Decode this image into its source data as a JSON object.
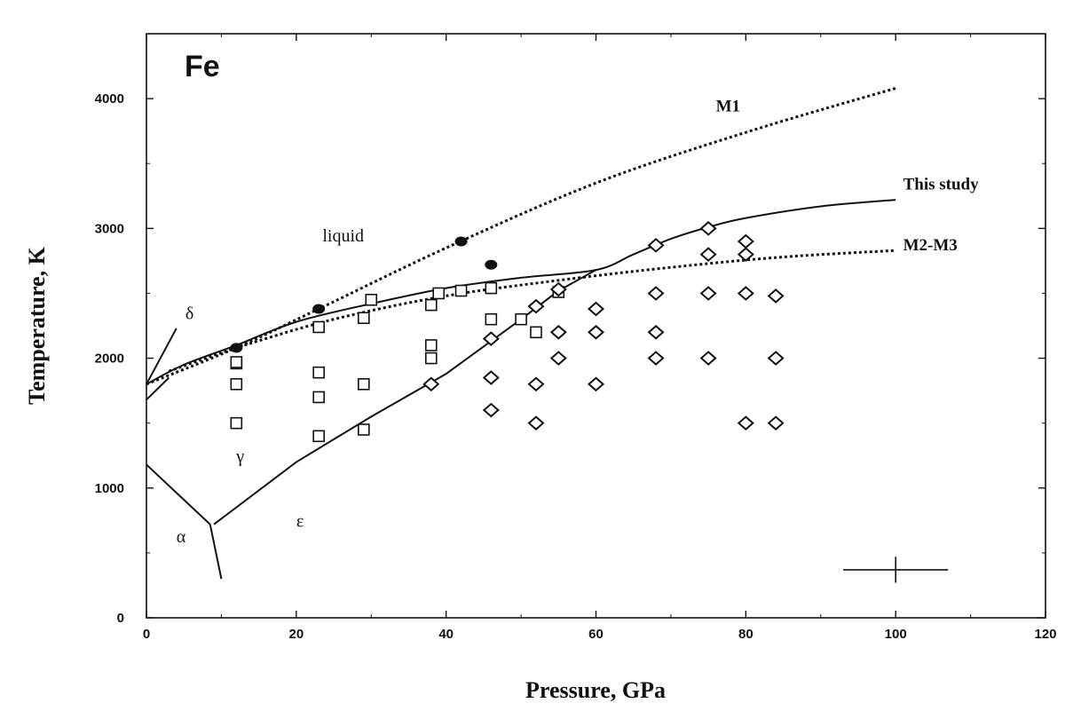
{
  "chart_data": {
    "type": "scatter",
    "title": "Fe",
    "xlabel": "Pressure, GPa",
    "ylabel": "Temperature, K",
    "xlim": [
      0,
      120
    ],
    "ylim": [
      0,
      4500
    ],
    "x_ticks": [
      0,
      20,
      40,
      60,
      80,
      100,
      120
    ],
    "y_ticks": [
      0,
      1000,
      2000,
      3000,
      4000
    ],
    "grid": false,
    "series": [
      {
        "name": "",
        "marker": "open-square",
        "points": [
          [
            12,
            1500
          ],
          [
            12,
            1800
          ],
          [
            12,
            1960
          ],
          [
            12,
            1970
          ],
          [
            23,
            1400
          ],
          [
            23,
            1700
          ],
          [
            23,
            1890
          ],
          [
            23,
            2240
          ],
          [
            29,
            1450
          ],
          [
            29,
            1800
          ],
          [
            29,
            2310
          ],
          [
            30,
            2450
          ],
          [
            38,
            2000
          ],
          [
            38,
            2100
          ],
          [
            38,
            2410
          ],
          [
            39,
            2500
          ],
          [
            42,
            2520
          ],
          [
            46,
            2300
          ],
          [
            46,
            2540
          ],
          [
            50,
            2300
          ],
          [
            52,
            2200
          ],
          [
            55,
            2510
          ]
        ]
      },
      {
        "name": "",
        "marker": "open-diamond",
        "points": [
          [
            38,
            1800
          ],
          [
            46,
            1600
          ],
          [
            46,
            1850
          ],
          [
            46,
            2150
          ],
          [
            52,
            1500
          ],
          [
            52,
            1800
          ],
          [
            52,
            2400
          ],
          [
            55,
            2000
          ],
          [
            55,
            2200
          ],
          [
            55,
            2530
          ],
          [
            60,
            1800
          ],
          [
            60,
            2200
          ],
          [
            60,
            2380
          ],
          [
            68,
            2000
          ],
          [
            68,
            2200
          ],
          [
            68,
            2500
          ],
          [
            68,
            2870
          ],
          [
            75,
            2000
          ],
          [
            75,
            2500
          ],
          [
            75,
            2800
          ],
          [
            75,
            3000
          ],
          [
            80,
            1500
          ],
          [
            80,
            2500
          ],
          [
            80,
            2800
          ],
          [
            80,
            2900
          ],
          [
            84,
            1500
          ],
          [
            84,
            2000
          ],
          [
            84,
            2480
          ]
        ]
      },
      {
        "name": "",
        "marker": "filled-circle",
        "points": [
          [
            12,
            2080
          ],
          [
            23,
            2380
          ],
          [
            42,
            2900
          ],
          [
            46,
            2720
          ]
        ]
      }
    ],
    "curves": [
      {
        "name": "This study",
        "style": "solid",
        "points": [
          [
            0,
            1800
          ],
          [
            5,
            1950
          ],
          [
            12,
            2100
          ],
          [
            20,
            2280
          ],
          [
            30,
            2420
          ],
          [
            40,
            2540
          ],
          [
            50,
            2620
          ],
          [
            60,
            2680
          ],
          [
            65,
            2800
          ],
          [
            70,
            2920
          ],
          [
            75,
            3010
          ],
          [
            80,
            3080
          ],
          [
            90,
            3170
          ],
          [
            100,
            3220
          ]
        ]
      },
      {
        "name": "M1",
        "style": "dotted",
        "points": [
          [
            0,
            1800
          ],
          [
            12,
            2080
          ],
          [
            23,
            2380
          ],
          [
            40,
            2850
          ],
          [
            60,
            3350
          ],
          [
            80,
            3740
          ],
          [
            100,
            4080
          ]
        ]
      },
      {
        "name": "M2-M3",
        "style": "dotted",
        "points": [
          [
            3,
            1900
          ],
          [
            12,
            2080
          ],
          [
            25,
            2300
          ],
          [
            40,
            2480
          ],
          [
            55,
            2600
          ],
          [
            70,
            2700
          ],
          [
            85,
            2780
          ],
          [
            100,
            2830
          ]
        ]
      }
    ],
    "phase_boundaries": [
      {
        "style": "solid",
        "points": [
          [
            0,
            1680
          ],
          [
            3,
            1850
          ]
        ]
      },
      {
        "style": "solid",
        "points": [
          [
            0,
            1800
          ],
          [
            4,
            2230
          ]
        ]
      },
      {
        "style": "solid",
        "points": [
          [
            0,
            1180
          ],
          [
            8.5,
            720
          ]
        ]
      },
      {
        "style": "solid",
        "points": [
          [
            8.5,
            720
          ],
          [
            10,
            300
          ]
        ]
      },
      {
        "style": "solid",
        "points": [
          [
            9,
            720
          ],
          [
            20,
            1200
          ],
          [
            30,
            1550
          ],
          [
            40,
            1880
          ],
          [
            50,
            2300
          ],
          [
            55,
            2520
          ],
          [
            60,
            2680
          ]
        ]
      }
    ],
    "error_bar": {
      "x": 100,
      "y": 370,
      "x_err": 7,
      "y_err": 100
    },
    "annotations": [
      {
        "text": "M1",
        "x": 76,
        "y": 3900,
        "kind": "curve"
      },
      {
        "text": "This study",
        "x": 101,
        "y": 3300,
        "kind": "curve"
      },
      {
        "text": "M2-M3",
        "x": 101,
        "y": 2830,
        "kind": "curve"
      },
      {
        "text": "liquid",
        "x": 23.5,
        "y": 2900,
        "kind": "region"
      },
      {
        "text": "δ",
        "x": 5.2,
        "y": 2300,
        "kind": "region"
      },
      {
        "text": "γ",
        "x": 12,
        "y": 1200,
        "kind": "region"
      },
      {
        "text": "ε",
        "x": 20,
        "y": 700,
        "kind": "region"
      },
      {
        "text": "α",
        "x": 4,
        "y": 580,
        "kind": "region"
      }
    ]
  }
}
